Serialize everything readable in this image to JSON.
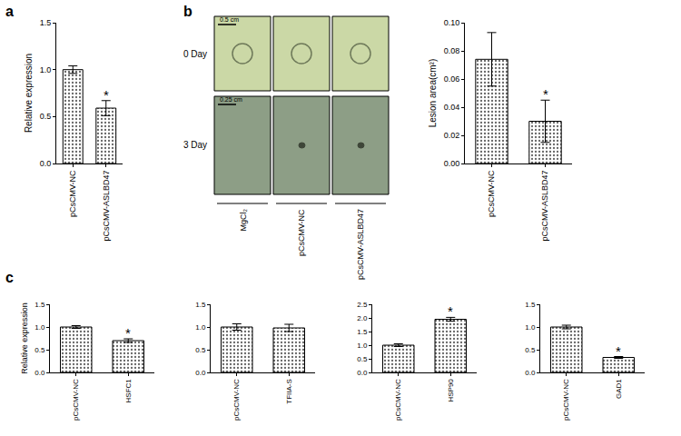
{
  "panel_labels": [
    "a",
    "b",
    "c"
  ],
  "photo_panel": {
    "row_labels": [
      "0 Day",
      "3 Day"
    ],
    "column_labels": [
      "MgCl₂",
      "pCsCMV-NC",
      "pCsCMV-ASLBD47"
    ],
    "scale_bars": [
      "0.5 cm",
      "0.25 cm"
    ]
  },
  "chart_data": [
    {
      "type": "bar",
      "categories": [
        "pCsCMV-NC",
        "pCsCMV-ASLBD47"
      ],
      "values": [
        1.0,
        0.59
      ],
      "errors": [
        0.04,
        0.08
      ],
      "color": "#ffffff",
      "y_label": "Relative expression",
      "ylim": [
        0,
        1.5
      ],
      "yticks": [
        {
          "value": 0,
          "label": "0.0"
        },
        0.5,
        {
          "value": 1,
          "label": "1.0"
        },
        1.5
      ],
      "grid": false,
      "annotations": [
        {
          "text": "*",
          "category": "pCsCMV-ASLBD47"
        }
      ]
    },
    {
      "type": "bar",
      "categories": [
        "pCsCMV-NC",
        "pCsCMV-ASLBD47"
      ],
      "values": [
        0.074,
        0.03
      ],
      "errors": [
        0.019,
        0.015
      ],
      "color": "#ffffff",
      "y_label": "Lesion area(cm²)",
      "ylim": [
        0,
        0.1
      ],
      "yticks": [
        {
          "value": 0,
          "label": "0.00"
        },
        0.02,
        0.04,
        0.06,
        0.08,
        {
          "value": 0.1,
          "label": "0.10"
        }
      ],
      "grid": false,
      "annotations": [
        {
          "text": "*",
          "category": "pCsCMV-ASLBD47"
        }
      ]
    },
    {
      "type": "bar",
      "categories": [
        "pCsCMV-NC",
        "HSFC1"
      ],
      "values": [
        1.0,
        0.7
      ],
      "errors": [
        0.03,
        0.04
      ],
      "color": "#ffffff",
      "y_label": "Relative expression",
      "ylim": [
        0,
        1.5
      ],
      "yticks": [
        {
          "value": 0,
          "label": "0.0"
        },
        0.5,
        {
          "value": 1,
          "label": "1.0"
        },
        1.5
      ],
      "grid": false,
      "annotations": [
        {
          "text": "*",
          "category": "HSFC1"
        }
      ]
    },
    {
      "type": "bar",
      "categories": [
        "pCsCMV-NC",
        "TFIIA-S"
      ],
      "values": [
        1.0,
        0.98
      ],
      "errors": [
        0.07,
        0.08
      ],
      "color": "#ffffff",
      "ylim": [
        0,
        1.5
      ],
      "yticks": [
        {
          "value": 0,
          "label": "0.0"
        },
        0.5,
        {
          "value": 1,
          "label": "1.0"
        },
        1.5
      ],
      "grid": false
    },
    {
      "type": "bar",
      "categories": [
        "pCsCMV-NC",
        "HSP90"
      ],
      "values": [
        1.0,
        1.95
      ],
      "errors": [
        0.05,
        0.07
      ],
      "color": "#ffffff",
      "ylim": [
        0,
        2.5
      ],
      "yticks": [
        {
          "value": 0,
          "label": "0.0"
        },
        0.5,
        {
          "value": 1,
          "label": "1.0"
        },
        1.5,
        {
          "value": 2,
          "label": "2.0"
        },
        2.5
      ],
      "grid": false,
      "annotations": [
        {
          "text": "*",
          "category": "HSP90"
        }
      ]
    },
    {
      "type": "bar",
      "categories": [
        "pCsCMV-NC",
        "GAD1"
      ],
      "values": [
        1.0,
        0.33
      ],
      "errors": [
        0.04,
        0.02
      ],
      "color": "#ffffff",
      "ylim": [
        0,
        1.5
      ],
      "yticks": [
        {
          "value": 0,
          "label": "0.0"
        },
        0.5,
        {
          "value": 1,
          "label": "1.0"
        },
        1.5
      ],
      "grid": false,
      "annotations": [
        {
          "text": "*",
          "category": "GAD1"
        }
      ]
    }
  ]
}
